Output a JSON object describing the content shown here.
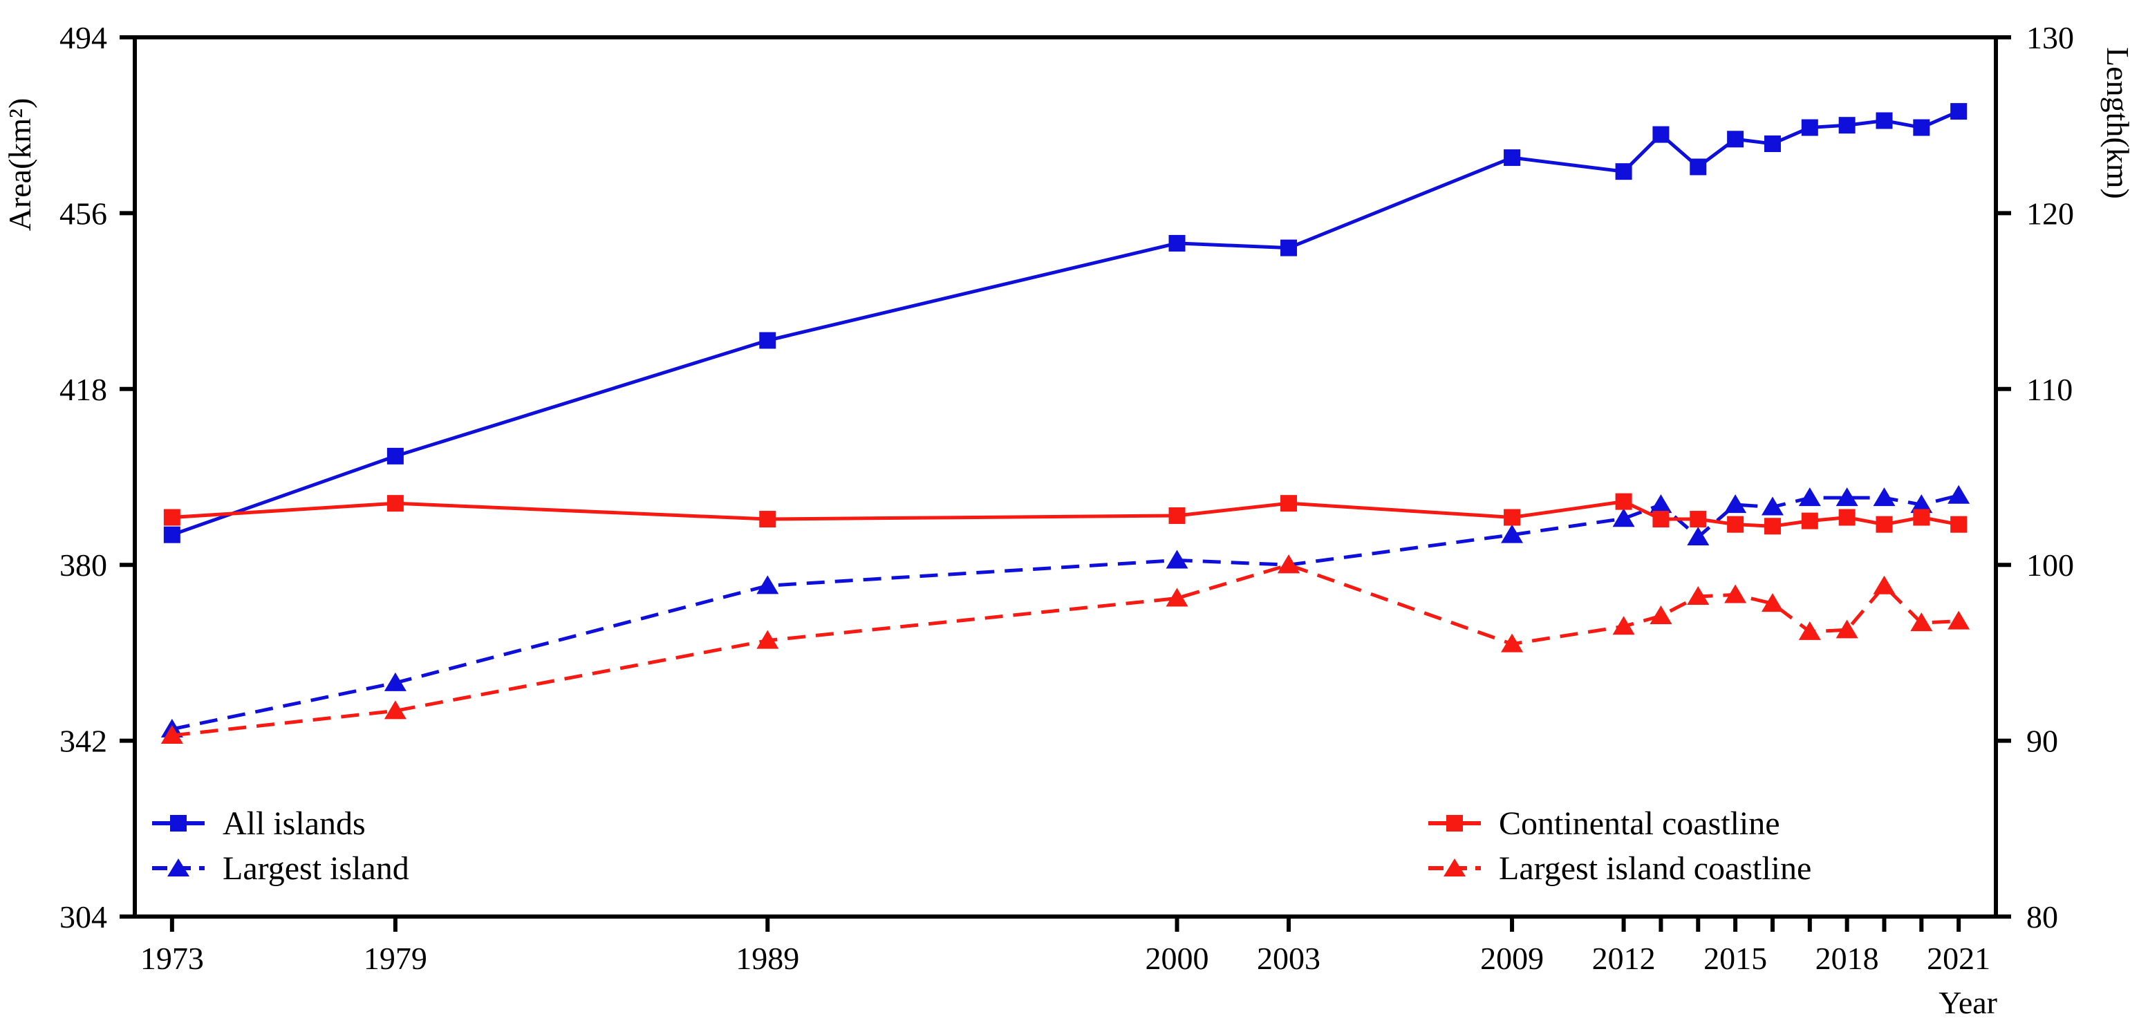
{
  "chart_data": {
    "type": "line",
    "title": "",
    "xlabel": "Year",
    "ylabel_left": "Area(km²)",
    "ylabel_right": "Length(km)",
    "xlim": [
      1972,
      2022
    ],
    "ylim_left": [
      304,
      494
    ],
    "ylim_right": [
      80,
      130
    ],
    "y_left_ticks": [
      494,
      456,
      418,
      380,
      342,
      304
    ],
    "y_right_ticks": [
      130,
      120,
      110,
      100,
      90,
      80
    ],
    "x_ticks": [
      1973,
      1979,
      1989,
      2000,
      2003,
      2009,
      2012,
      2013,
      2014,
      2015,
      2016,
      2017,
      2018,
      2019,
      2020,
      2021
    ],
    "x_labeled_ticks": [
      1973,
      1979,
      1989,
      2000,
      2003,
      2009,
      2012,
      2015,
      2018,
      2021
    ],
    "grid": "off",
    "legend_position": "inside-bottom, two columns",
    "x": [
      1973,
      1979,
      1989,
      2000,
      2003,
      2009,
      2012,
      2013,
      2014,
      2015,
      2016,
      2017,
      2018,
      2019,
      2020,
      2021
    ],
    "series": [
      {
        "name": "All islands",
        "axis": "left",
        "color": "#0f0fdc",
        "line": "solid",
        "marker": "square",
        "values": [
          386.5,
          403.5,
          428.5,
          449.5,
          448.5,
          468,
          465,
          473,
          466,
          472,
          471,
          474.5,
          475,
          476,
          474.5,
          478
        ]
      },
      {
        "name": "Largest island",
        "axis": "left",
        "color": "#0f0fdc",
        "line": "dashed",
        "marker": "triangle",
        "values": [
          344.5,
          354.5,
          375.5,
          381,
          380,
          386.5,
          390,
          393,
          386,
          393,
          392.5,
          394.5,
          394.5,
          394.5,
          393,
          395
        ]
      },
      {
        "name": "Continental coastline",
        "axis": "right",
        "color": "#f71a12",
        "line": "solid",
        "marker": "square",
        "values": [
          102.7,
          103.5,
          102.6,
          102.8,
          103.5,
          102.7,
          103.6,
          102.6,
          102.6,
          102.3,
          102.2,
          102.5,
          102.7,
          102.3,
          102.7,
          102.3
        ]
      },
      {
        "name": "Largest island coastline",
        "axis": "right",
        "color": "#f71a12",
        "line": "dashed",
        "marker": "triangle",
        "values": [
          90.3,
          91.7,
          95.7,
          98.1,
          100,
          95.5,
          96.5,
          97.1,
          98.2,
          98.3,
          97.8,
          96.2,
          96.3,
          98.8,
          96.7,
          96.8
        ]
      }
    ],
    "colors": {
      "blue_series": "#0f0fdc",
      "red_series": "#f71a12",
      "axis": "#000000",
      "background": "#ffffff"
    }
  }
}
